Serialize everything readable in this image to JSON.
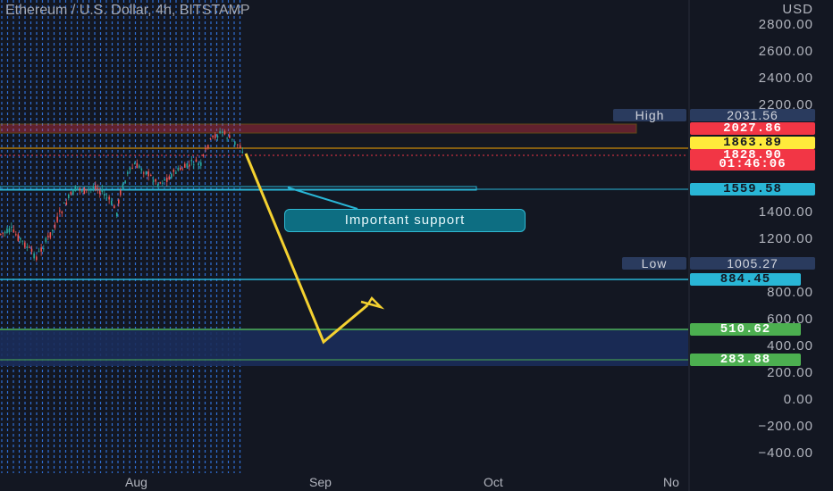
{
  "chart": {
    "title": "Ethereum / U.S. Dollar, 4h, BITSTAMP",
    "currency": "USD"
  },
  "y_axis_labels": [
    "2800.00",
    "2600.00",
    "2400.00",
    "2200.00",
    "1400.00",
    "1200.00",
    "800.00",
    "600.00",
    "400.00",
    "200.00",
    "0.00",
    "−200.00",
    "−400.00"
  ],
  "x_axis_labels": [
    "Aug",
    "Sep",
    "Oct",
    "No"
  ],
  "stats": {
    "high_label": "High",
    "high_value": "2031.56",
    "low_label": "Low",
    "low_value": "1005.27"
  },
  "price_tags": {
    "resistance": "2027.86",
    "yellow": "1863.89",
    "current": "1828.90",
    "countdown": "01:46:06",
    "support": "1559.58",
    "level1": "884.45",
    "level2": "510.62",
    "level3": "283.88"
  },
  "callout": {
    "text": "Important support"
  },
  "colors": {
    "background": "#131722",
    "resistance": "#f23645",
    "current_line": "#f7a600",
    "yellow_tag": "#ffeb3b",
    "support": "#29b6d6",
    "green_tag": "#4caf50",
    "projection": "#f4d130",
    "dotted_grid": "#2f6fd6"
  },
  "chart_data": {
    "type": "candlestick",
    "timeframe": "4h",
    "y_range": [
      -400,
      2800
    ],
    "price_levels": [
      2027.86,
      1863.89,
      1828.9,
      1559.58,
      884.45,
      510.62,
      283.88
    ],
    "projection_path": [
      1863.89,
      430,
      830
    ],
    "grid": false,
    "legend": "none"
  }
}
